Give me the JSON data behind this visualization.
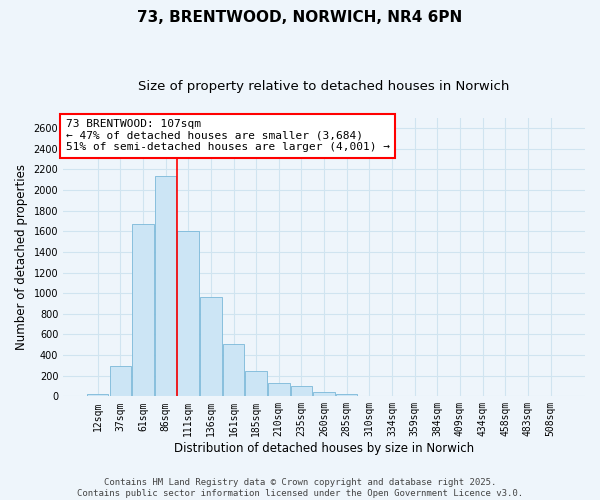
{
  "title": "73, BRENTWOOD, NORWICH, NR4 6PN",
  "subtitle": "Size of property relative to detached houses in Norwich",
  "xlabel": "Distribution of detached houses by size in Norwich",
  "ylabel": "Number of detached properties",
  "categories": [
    "12sqm",
    "37sqm",
    "61sqm",
    "86sqm",
    "111sqm",
    "136sqm",
    "161sqm",
    "185sqm",
    "210sqm",
    "235sqm",
    "260sqm",
    "285sqm",
    "310sqm",
    "334sqm",
    "359sqm",
    "384sqm",
    "409sqm",
    "434sqm",
    "458sqm",
    "483sqm",
    "508sqm"
  ],
  "values": [
    20,
    290,
    1670,
    2140,
    1600,
    960,
    510,
    250,
    125,
    100,
    40,
    20,
    5,
    2,
    1,
    0,
    0,
    0,
    0,
    0,
    3
  ],
  "bar_color": "#cce5f5",
  "bar_edge_color": "#7ab8d9",
  "vline_x": 3.5,
  "vline_color": "red",
  "annotation_text": "73 BRENTWOOD: 107sqm\n← 47% of detached houses are smaller (3,684)\n51% of semi-detached houses are larger (4,001) →",
  "annotation_box_color": "white",
  "annotation_box_edge_color": "red",
  "ylim": [
    0,
    2700
  ],
  "yticks": [
    0,
    200,
    400,
    600,
    800,
    1000,
    1200,
    1400,
    1600,
    1800,
    2000,
    2200,
    2400,
    2600
  ],
  "footer_line1": "Contains HM Land Registry data © Crown copyright and database right 2025.",
  "footer_line2": "Contains public sector information licensed under the Open Government Licence v3.0.",
  "background_color": "#eef5fb",
  "grid_color": "#d0e4f0",
  "title_fontsize": 11,
  "subtitle_fontsize": 9.5,
  "axis_label_fontsize": 8.5,
  "tick_fontsize": 7,
  "annotation_fontsize": 8,
  "footer_fontsize": 6.5
}
